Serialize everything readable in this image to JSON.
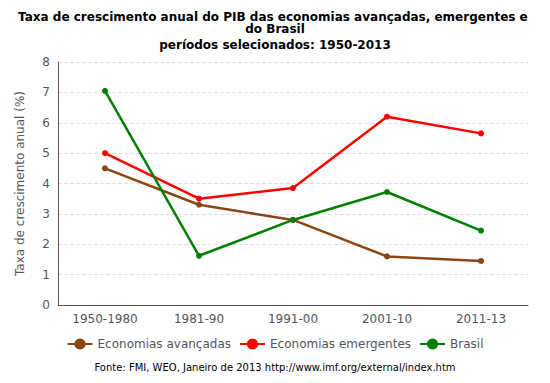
{
  "chart_data": {
    "type": "line",
    "title": "Taxa de crescimento anual do PIB das economias avançadas, emergentes e do Brasil",
    "subtitle": "períodos selecionados: 1950-2013",
    "ylabel": "Taxa de crescimento anual (%)",
    "annotations": [
      "Fonte: FMI, WEO, Janeiro de 2013 http://www.imf.org/external/index.htm"
    ],
    "categories": [
      "1950-1980",
      "1981-90",
      "1991-00",
      "2001-10",
      "2011-13"
    ],
    "series": [
      {
        "name": "Economias avançadas",
        "color": "#8B4513",
        "values": [
          4.5,
          3.3,
          2.8,
          1.6,
          1.45
        ]
      },
      {
        "name": "Economias emergentes",
        "color": "#FF0000",
        "values": [
          5.0,
          3.5,
          3.85,
          6.2,
          5.65
        ]
      },
      {
        "name": "Brasil",
        "color": "#008000",
        "values": [
          7.05,
          1.62,
          2.8,
          3.72,
          2.45
        ]
      }
    ],
    "ylim": [
      0,
      8
    ],
    "yticks": [
      0,
      1,
      2,
      3,
      4,
      5,
      6,
      7,
      8
    ],
    "grid": true,
    "legend": "bottom",
    "marker": "circle"
  }
}
